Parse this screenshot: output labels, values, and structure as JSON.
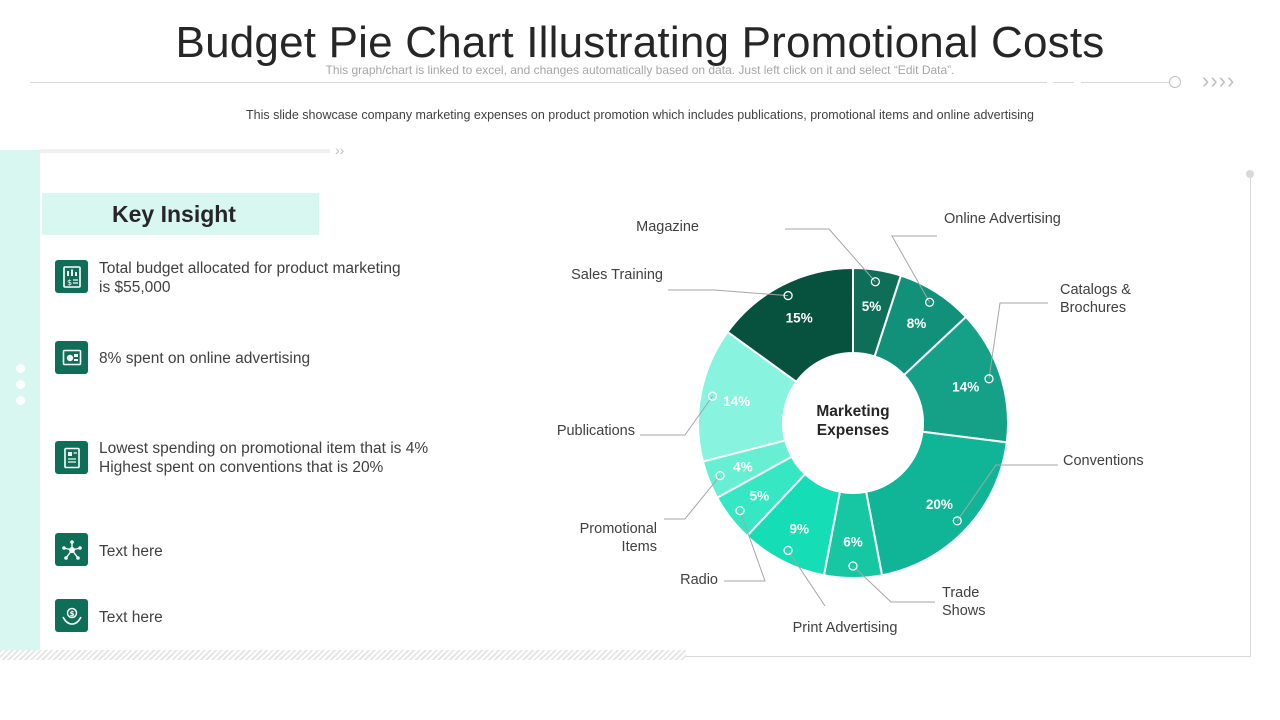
{
  "slide": {
    "title": "Budget Pie Chart Illustrating Promotional Costs",
    "note": "This graph/chart is linked to excel, and changes automatically based on data. Just left click on it and select “Edit Data”.",
    "description": "This slide showcase company marketing expenses on product promotion which includes publications, promotional items and online advertising",
    "arrows": "››››",
    "small_arrows": "››"
  },
  "insights": {
    "title": "Key Insight",
    "items": [
      {
        "icon": "budget-report-icon",
        "line1": "Total budget allocated for product marketing",
        "line2": "is $55,000"
      },
      {
        "icon": "online-ad-icon",
        "line1": "8% spent on online advertising",
        "line2": ""
      },
      {
        "icon": "promo-document-icon",
        "line1": "Lowest spending on promotional item that is 4%",
        "line2": "Highest spent on conventions  that is 20%"
      },
      {
        "icon": "network-icon",
        "line1": "Text here",
        "line2": ""
      },
      {
        "icon": "money-hands-icon",
        "line1": "Text here",
        "line2": ""
      }
    ]
  },
  "chart_data": {
    "type": "pie",
    "donut": true,
    "center_label": [
      "Marketing",
      "Expenses"
    ],
    "slices": [
      {
        "name": "Magazine",
        "value": 5,
        "label": "5%",
        "color": "#0f6e57"
      },
      {
        "name": "Online Advertising",
        "value": 8,
        "label": "8%",
        "color": "#12917a"
      },
      {
        "name": "Catalogs & Brochures",
        "value": 14,
        "label": "14%",
        "color": "#15a088"
      },
      {
        "name": "Conventions",
        "value": 20,
        "label": "20%",
        "color": "#10b597"
      },
      {
        "name": "Trade Shows",
        "value": 6,
        "label": "6%",
        "color": "#17c7a4"
      },
      {
        "name": "Print Advertising",
        "value": 9,
        "label": "9%",
        "color": "#15ddb5"
      },
      {
        "name": "Radio",
        "value": 5,
        "label": "5%",
        "color": "#35e8c3"
      },
      {
        "name": "Promotional Items",
        "value": 4,
        "label": "4%",
        "color": "#66efd3"
      },
      {
        "name": "Publications",
        "value": 14,
        "label": "14%",
        "color": "#88f4df"
      },
      {
        "name": "Sales Training",
        "value": 15,
        "label": "15%",
        "color": "#07523f"
      }
    ],
    "legend": "callouts"
  }
}
